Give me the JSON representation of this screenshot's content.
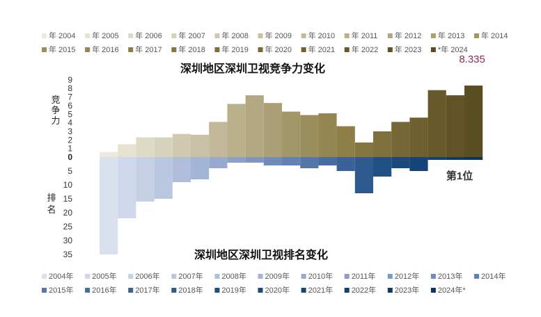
{
  "chart_data": [
    {
      "type": "bar",
      "title": "深圳地区深圳卫视竞争力变化",
      "ylabel": "竞争力",
      "ylim": [
        0,
        9
      ],
      "yticks": [
        1,
        2,
        3,
        4,
        5,
        6,
        7,
        8,
        9
      ],
      "categories": [
        "年 2004",
        "年 2005",
        "年 2006",
        "年 2007",
        "年 2008",
        "年 2009",
        "年 2010",
        "年 2011",
        "年 2012",
        "年 2013",
        "年 2014",
        "年 2015",
        "年 2016",
        "年 2017",
        "年 2018",
        "年 2019",
        "年 2020",
        "年 2021",
        "年 2022",
        "年 2023",
        "*年 2024"
      ],
      "values": [
        0.6,
        1.5,
        2.3,
        2.3,
        2.7,
        2.6,
        4.1,
        6.2,
        7.2,
        6.3,
        5.3,
        4.9,
        5.1,
        3.6,
        1.7,
        3.0,
        4.1,
        4.6,
        7.8,
        7.2,
        8.335
      ],
      "annotation": "8.335",
      "colors": [
        "#ece9dc",
        "#e6e2d2",
        "#dedac6",
        "#d7d2bc",
        "#cfc9b0",
        "#c8c1a5",
        "#c1b999",
        "#b9b08c",
        "#b2a780",
        "#aa9f75",
        "#a39769",
        "#9c8f5e",
        "#948653",
        "#8d7e48",
        "#857641",
        "#7e6f3b",
        "#766736",
        "#6f6030",
        "#68592b",
        "#615326",
        "#5a4d22"
      ]
    },
    {
      "type": "bar",
      "title": "深圳地区深圳卫视排名变化",
      "ylabel": "排名",
      "ylim": [
        0,
        35
      ],
      "yticks": [
        0,
        5,
        10,
        15,
        20,
        25,
        30,
        35
      ],
      "categories": [
        "2004年",
        "2005年",
        "2006年",
        "2007年",
        "2008年",
        "2009年",
        "2010年",
        "2011年",
        "2012年",
        "2013年",
        "2014年",
        "2015年",
        "2016年",
        "2017年",
        "2018年",
        "2019年",
        "2020年",
        "2021年",
        "2022年",
        "2023年",
        "2024年*"
      ],
      "values": [
        35,
        22,
        16,
        15,
        9,
        8,
        4,
        2,
        2,
        3,
        3,
        4,
        3,
        5,
        13,
        7,
        4,
        5,
        1,
        1,
        1
      ],
      "annotation": "第1位",
      "colors": [
        "#d9e1ef",
        "#cfd8ea",
        "#c5d0e5",
        "#bac7e0",
        "#afbeda",
        "#a3b4d4",
        "#97aace",
        "#8ba0c7",
        "#7e96c0",
        "#718bb9",
        "#6381b1",
        "#5576aa",
        "#476ca1",
        "#3a6298",
        "#2d598f",
        "#225085",
        "#1a4a7d",
        "#154476",
        "#113f6e",
        "#0e3a66",
        "#0b355f"
      ]
    }
  ]
}
